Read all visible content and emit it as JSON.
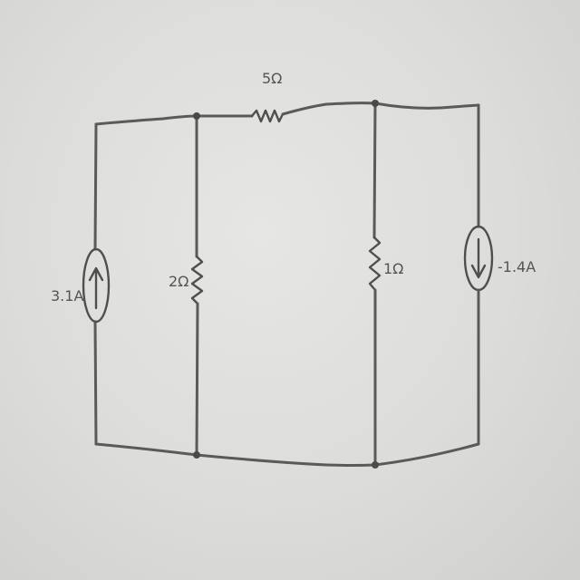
{
  "labels": {
    "top_resistor": "5Ω",
    "left_resistor": "2Ω",
    "right_resistor": "1Ω",
    "left_source": "3.1A",
    "right_source": "-1.4A"
  },
  "colors": {
    "paper": "#e2e2e0",
    "ink": "#5a5a58"
  }
}
